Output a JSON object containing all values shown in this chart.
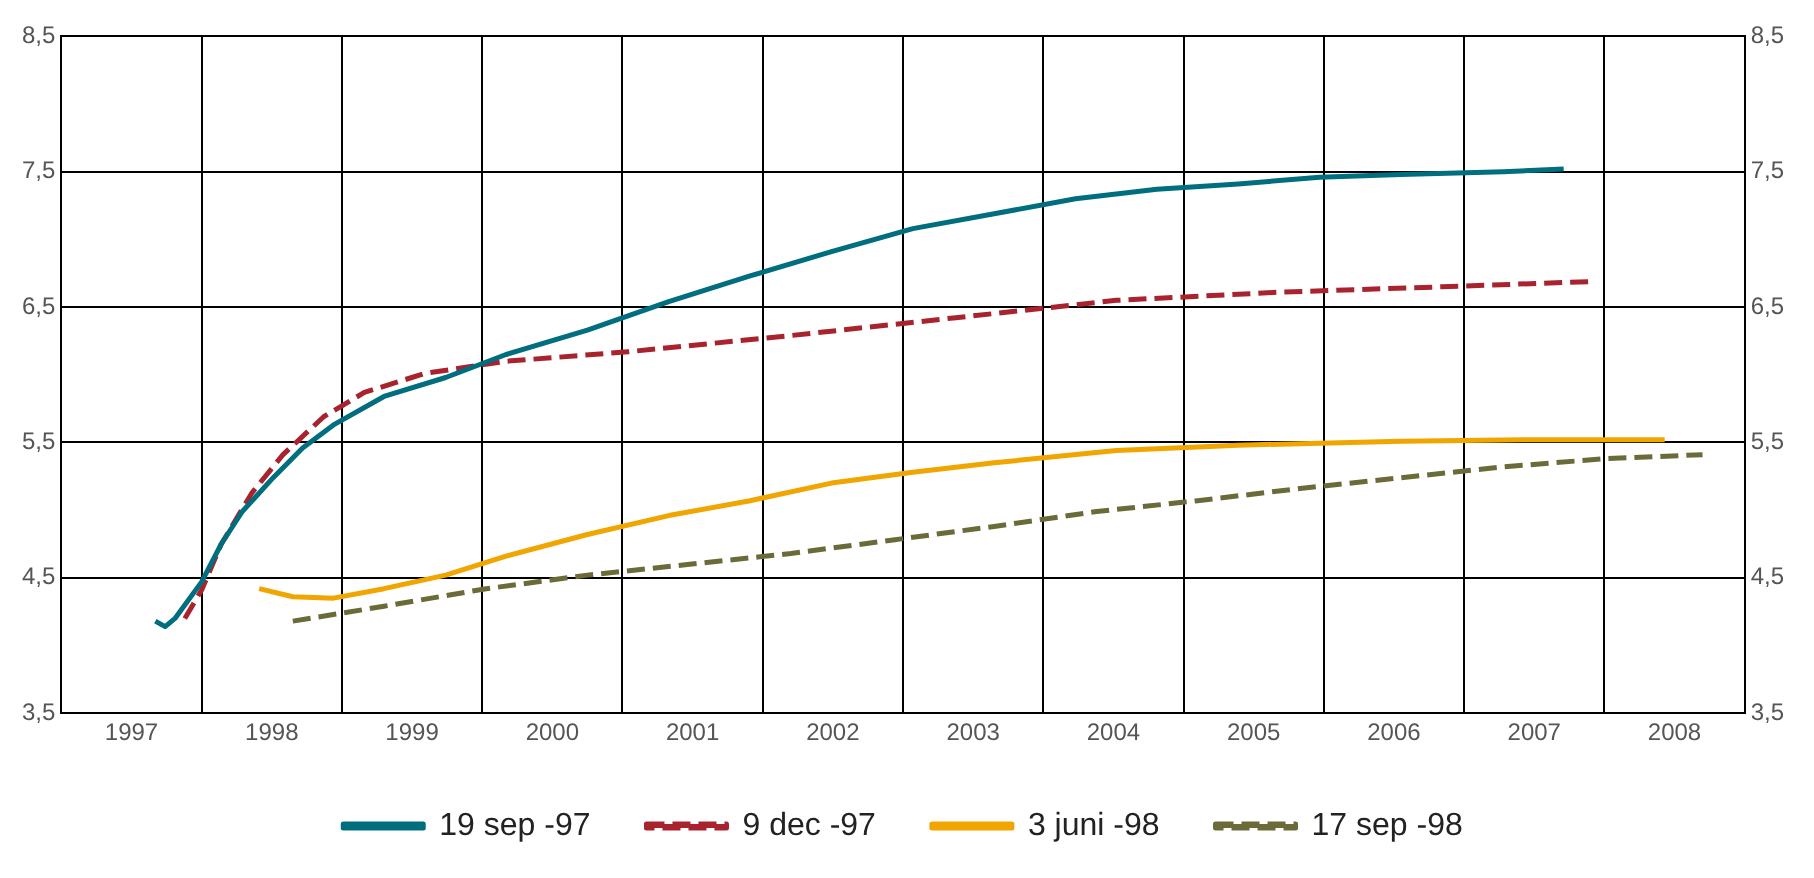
{
  "chart_data": {
    "type": "line",
    "xlim": [
      1997,
      2009
    ],
    "xticks": [
      {
        "value": 1997.5,
        "label": "1997"
      },
      {
        "value": 1998,
        "label": null
      },
      {
        "value": 1998.5,
        "label": "1998"
      },
      {
        "value": 1999,
        "label": null
      },
      {
        "value": 1999.5,
        "label": "1999"
      },
      {
        "value": 2000,
        "label": null
      },
      {
        "value": 2000.5,
        "label": "2000"
      },
      {
        "value": 2001,
        "label": null
      },
      {
        "value": 2001.5,
        "label": "2001"
      },
      {
        "value": 2002,
        "label": null
      },
      {
        "value": 2002.5,
        "label": "2002"
      },
      {
        "value": 2003,
        "label": null
      },
      {
        "value": 2003.5,
        "label": "2003"
      },
      {
        "value": 2004,
        "label": null
      },
      {
        "value": 2004.5,
        "label": "2004"
      },
      {
        "value": 2005,
        "label": null
      },
      {
        "value": 2005.5,
        "label": "2005"
      },
      {
        "value": 2006,
        "label": null
      },
      {
        "value": 2006.5,
        "label": "2006"
      },
      {
        "value": 2007,
        "label": null
      },
      {
        "value": 2007.5,
        "label": "2007"
      },
      {
        "value": 2008,
        "label": null
      },
      {
        "value": 2008.5,
        "label": "2008"
      }
    ],
    "ylim": [
      3.5,
      8.5
    ],
    "yticks": [
      {
        "value": 3.5,
        "label": "3,5"
      },
      {
        "value": 4.5,
        "label": "4,5"
      },
      {
        "value": 5.5,
        "label": "5,5"
      },
      {
        "value": 6.5,
        "label": "6,5"
      },
      {
        "value": 7.5,
        "label": "7,5"
      },
      {
        "value": 8.5,
        "label": "8,5"
      }
    ],
    "y2lim": [
      3.5,
      8.5
    ],
    "y2ticks": [
      {
        "value": 3.5,
        "label": "3,5"
      },
      {
        "value": 4.5,
        "label": "4,5"
      },
      {
        "value": 5.5,
        "label": "5,5"
      },
      {
        "value": 6.5,
        "label": "6,5"
      },
      {
        "value": 7.5,
        "label": "7,5"
      },
      {
        "value": 8.5,
        "label": "8,5"
      }
    ],
    "grid": true,
    "legend": "bottom",
    "marker": "none",
    "series": [
      {
        "name": "19 sep -97",
        "color": "#006e7f",
        "line_style": "solid",
        "x": [
          1997.67,
          1997.74,
          1997.81,
          1998.0,
          1998.14,
          1998.29,
          1998.51,
          1998.72,
          1998.94,
          1999.3,
          1999.74,
          2000.17,
          2000.75,
          2001.33,
          2001.91,
          2002.49,
          2003.07,
          2003.65,
          2004.23,
          2004.81,
          2005.39,
          2005.97,
          2006.55,
          2007.28,
          2007.71
        ],
        "values": [
          4.18,
          4.14,
          4.2,
          4.47,
          4.75,
          4.99,
          5.24,
          5.46,
          5.63,
          5.84,
          5.98,
          6.15,
          6.33,
          6.54,
          6.73,
          6.91,
          7.08,
          7.19,
          7.3,
          7.37,
          7.41,
          7.46,
          7.48,
          7.5,
          7.52
        ]
      },
      {
        "name": "9 dec -97",
        "color": "#a8232e",
        "line_style": "dashed",
        "x": [
          1997.88,
          1998.0,
          1998.14,
          1998.36,
          1998.58,
          1998.87,
          1999.16,
          1999.59,
          2000.17,
          2001.04,
          2002.2,
          2003.36,
          2004.52,
          2005.68,
          2006.84,
          2007.93
        ],
        "values": [
          4.2,
          4.41,
          4.75,
          5.13,
          5.41,
          5.69,
          5.87,
          6.01,
          6.1,
          6.17,
          6.29,
          6.42,
          6.55,
          6.61,
          6.65,
          6.69
        ]
      },
      {
        "name": "3 juni -98",
        "color": "#f0a500",
        "line_style": "solid",
        "x": [
          1998.41,
          1998.65,
          1998.94,
          1999.3,
          1999.74,
          2000.17,
          2000.75,
          2001.33,
          2001.91,
          2002.49,
          2003.07,
          2003.65,
          2004.52,
          2005.39,
          2006.55,
          2007.42,
          2008.43
        ],
        "values": [
          4.42,
          4.36,
          4.35,
          4.42,
          4.52,
          4.66,
          4.82,
          4.96,
          5.07,
          5.2,
          5.28,
          5.35,
          5.44,
          5.48,
          5.51,
          5.52,
          5.52
        ]
      },
      {
        "name": "17 sep -98",
        "color": "#6b6b3a",
        "line_style": "dashed",
        "x": [
          1998.65,
          1999.3,
          2000.03,
          2000.75,
          2001.48,
          2002.2,
          2002.93,
          2003.65,
          2004.38,
          2005.1,
          2005.83,
          2006.55,
          2007.28,
          2008.0,
          2008.7
        ],
        "values": [
          4.18,
          4.29,
          4.42,
          4.52,
          4.6,
          4.68,
          4.78,
          4.88,
          4.99,
          5.07,
          5.16,
          5.24,
          5.32,
          5.38,
          5.41
        ]
      }
    ]
  }
}
